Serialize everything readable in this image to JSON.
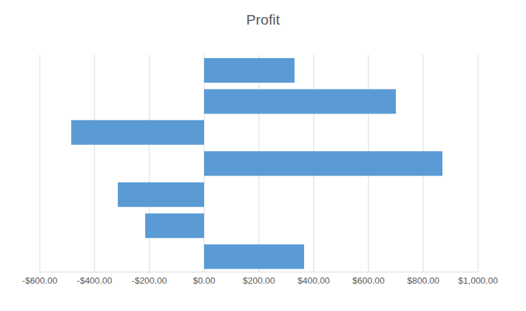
{
  "chart_data": {
    "type": "bar",
    "title": "Profit",
    "orientation": "horizontal",
    "categories": [
      null,
      null,
      null,
      null,
      null,
      null,
      null
    ],
    "values": [
      330,
      700,
      -485,
      870,
      -315,
      -215,
      365
    ],
    "color": "#5b9bd5",
    "xlim": [
      -600,
      1000
    ],
    "xticks": [
      {
        "value": -600,
        "label": "-$600.00"
      },
      {
        "value": -400,
        "label": "-$400.00"
      },
      {
        "value": -200,
        "label": "-$200.00"
      },
      {
        "value": 0,
        "label": "$0.00"
      },
      {
        "value": 200,
        "label": "$200.00"
      },
      {
        "value": 400,
        "label": "$400.00"
      },
      {
        "value": 600,
        "label": "$600.00"
      },
      {
        "value": 800,
        "label": "$800.00"
      },
      {
        "value": 1000,
        "label": "$1,000.00"
      }
    ],
    "grid": true,
    "tick_labels": "x"
  }
}
